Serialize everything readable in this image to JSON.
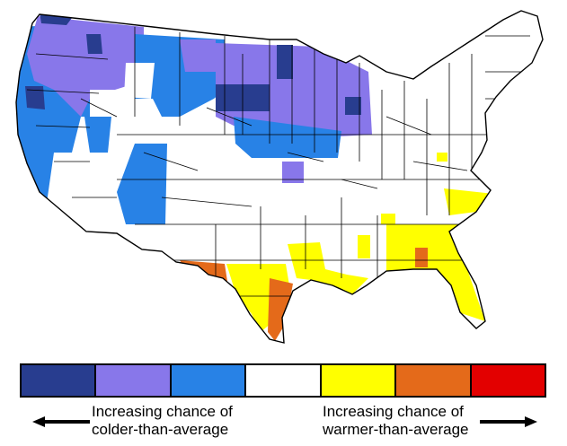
{
  "legend": {
    "colors": [
      "#283d8f",
      "#8877ea",
      "#2882e6",
      "#ffffff",
      "#ffff00",
      "#e46a1a",
      "#e30000"
    ],
    "cold_caption_line1": "Increasing chance of",
    "cold_caption_line2": "colder-than-average",
    "warm_caption_line1": "Increasing chance of",
    "warm_caption_line2": "warmer-than-average",
    "left_arrow_icon": "arrow-left-icon",
    "right_arrow_icon": "arrow-right-icon"
  },
  "map": {
    "region": "Contiguous United States",
    "subdivisions": "climate divisions"
  }
}
